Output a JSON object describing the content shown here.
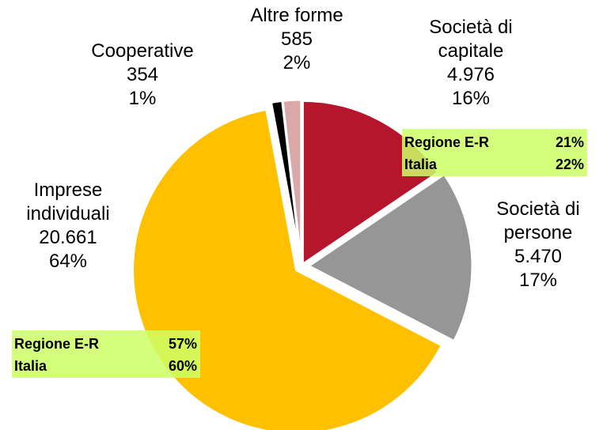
{
  "chart_data": {
    "type": "pie",
    "categories": [
      "Società di\ncapitale",
      "Società di\npersone",
      "Imprese\nindividuali",
      "Cooperative",
      "Altre forme"
    ],
    "values": [
      4976,
      5470,
      20661,
      354,
      585
    ],
    "value_labels": [
      "4.976",
      "5.470",
      "20.661",
      "354",
      "585"
    ],
    "percent_labels": [
      "16%",
      "17%",
      "64%",
      "1%",
      "2%"
    ],
    "colors": [
      "#b5162b",
      "#969696",
      "#ffc000",
      "#000000",
      "#d9a8a8"
    ],
    "annotations": [
      {
        "rows": [
          [
            "Regione E-R",
            "21%"
          ],
          [
            "Italia",
            "22%"
          ]
        ]
      },
      {
        "rows": [
          [
            "Regione E-R",
            "57%"
          ],
          [
            "Italia",
            "60%"
          ]
        ]
      }
    ]
  }
}
